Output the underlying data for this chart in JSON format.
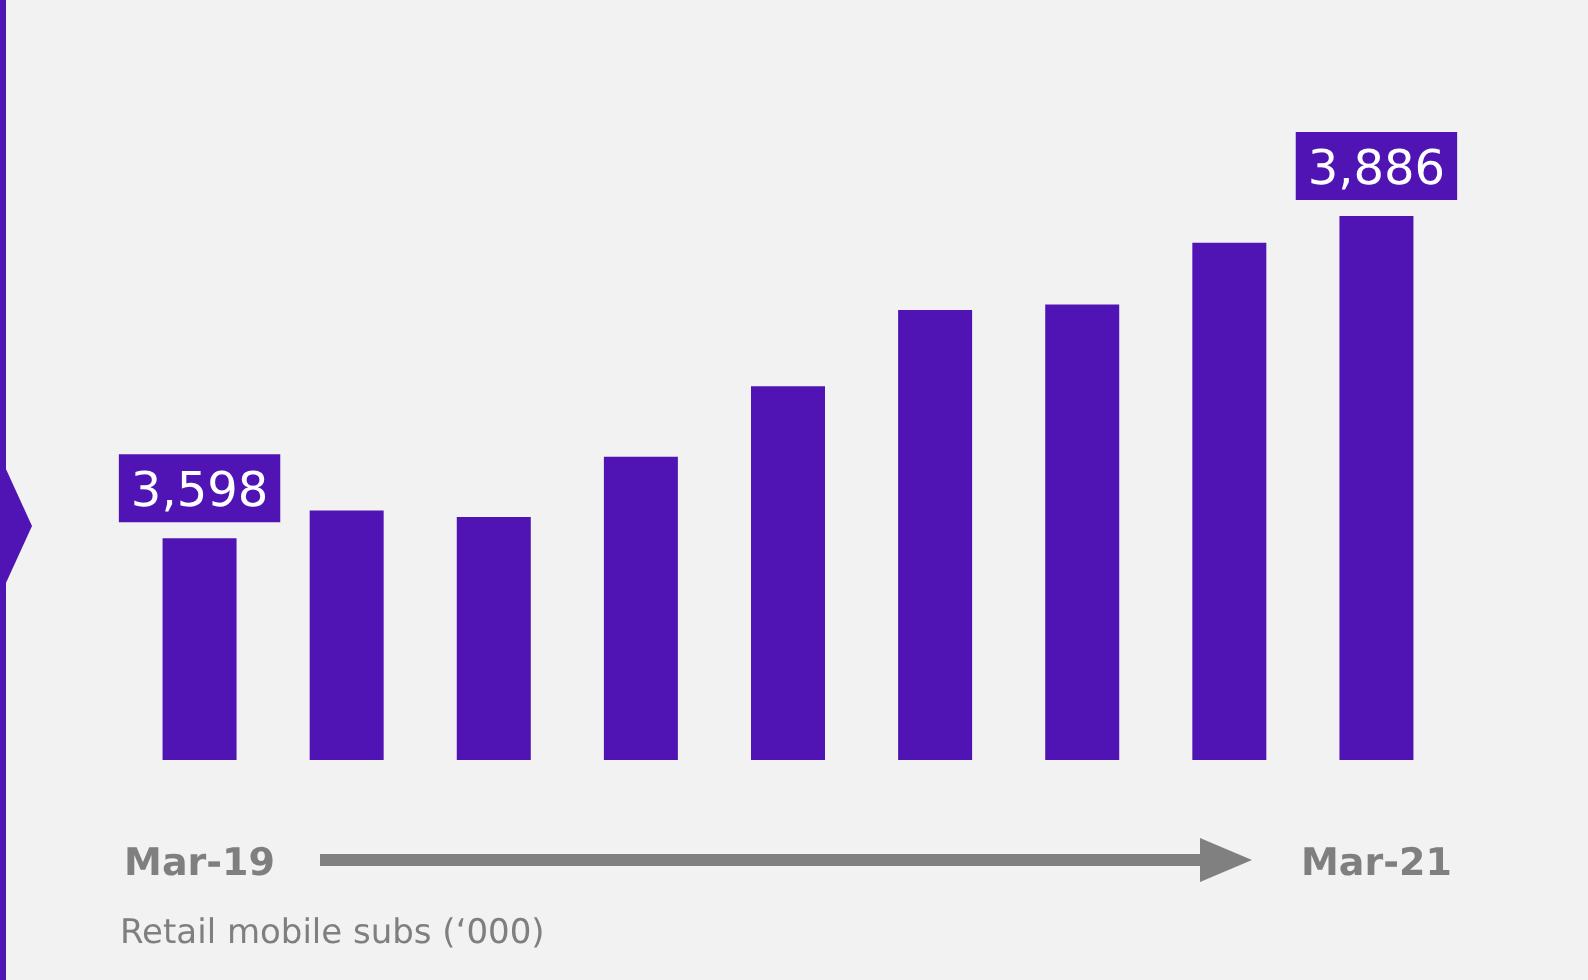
{
  "chart_data": {
    "type": "bar",
    "categories": [
      "Mar-19",
      null,
      null,
      null,
      null,
      null,
      null,
      null,
      "Mar-21"
    ],
    "values": [
      3598,
      3623,
      3617,
      3671,
      3734,
      3802,
      3807,
      3862,
      3886
    ],
    "value_labels": [
      "3,598",
      null,
      null,
      null,
      null,
      null,
      null,
      null,
      "3,886"
    ],
    "ylim": [
      3400,
      3886
    ],
    "color": "#5014b4",
    "annotations": [
      "Retail mobile subs (‘000)"
    ]
  }
}
